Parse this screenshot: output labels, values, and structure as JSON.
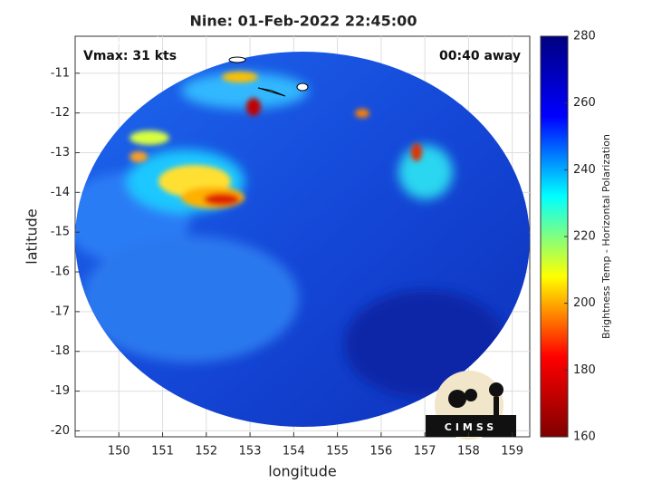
{
  "chart_data": {
    "type": "swath-map",
    "title": "Nine: 01-Feb-2022 22:45:00",
    "xlabel": "longitude",
    "ylabel": "latitude",
    "xlim": [
      149,
      159.4
    ],
    "ylim": [
      -20.15,
      -10.07
    ],
    "xticks": [
      150,
      151,
      152,
      153,
      154,
      155,
      156,
      157,
      158,
      159
    ],
    "yticks": [
      -11,
      -12,
      -13,
      -14,
      -15,
      -16,
      -17,
      -18,
      -19,
      -20
    ],
    "grid": true,
    "annotations": [
      "Vmax: 31 kts",
      "00:40 away"
    ],
    "colorbar": {
      "label": "Brightness Temp - Horizontal Polarization",
      "lim": [
        160,
        280
      ],
      "ticks": [
        160,
        180,
        200,
        220,
        240,
        260,
        280
      ],
      "colormap": [
        "#800000",
        "#ff0000",
        "#ffff00",
        "#00ffff",
        "#0000ff",
        "#000080"
      ]
    },
    "logo": "CIMSS"
  }
}
